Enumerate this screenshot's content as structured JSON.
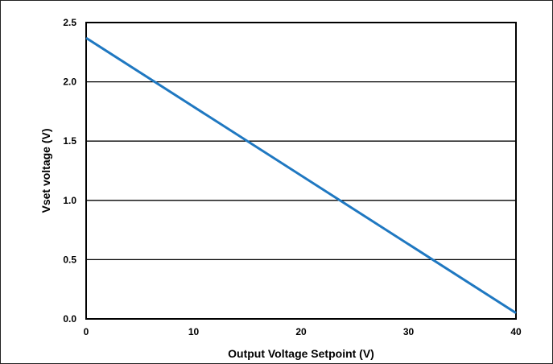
{
  "chart_data": {
    "type": "line",
    "title": "",
    "xlabel": "Output Voltage Setpoint (V)",
    "ylabel": "Vset voltage (V)",
    "xlim": [
      0,
      40
    ],
    "ylim": [
      0,
      2.5
    ],
    "xticks": [
      0,
      10,
      20,
      30,
      40
    ],
    "xtick_labels": [
      "0",
      "10",
      "20",
      "30",
      "40"
    ],
    "yticks": [
      0,
      0.5,
      1.0,
      1.5,
      2.0,
      2.5
    ],
    "ytick_labels": [
      "0.0",
      "0.5",
      "1.0",
      "1.5",
      "2.0",
      "2.5"
    ],
    "grid": "horizontal",
    "legend": "none",
    "series": [
      {
        "color": "#1f78c1",
        "x": [
          0,
          40
        ],
        "y": [
          2.37,
          0.05
        ]
      }
    ]
  }
}
